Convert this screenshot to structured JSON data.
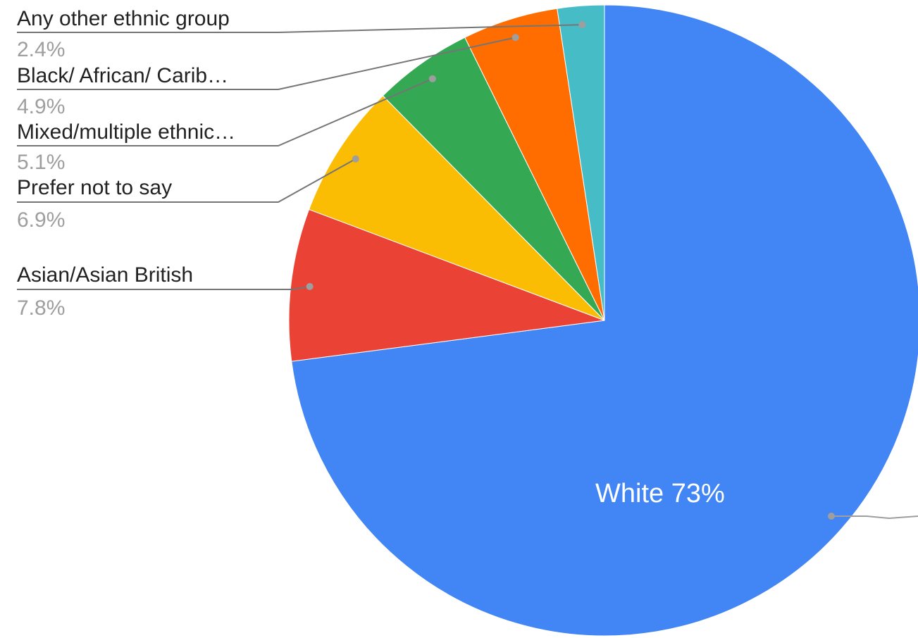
{
  "chart_data": {
    "type": "pie",
    "title": "",
    "legend": "none",
    "slices": [
      {
        "label": "White",
        "value": 73,
        "display": "White 73%",
        "color": "#4285f4"
      },
      {
        "label": "Asian/Asian British",
        "value": 7.8,
        "display": "7.8%",
        "color": "#ea4335"
      },
      {
        "label": "Prefer not to say",
        "value": 6.9,
        "display": "6.9%",
        "color": "#fbbc04"
      },
      {
        "label": "Mixed/multiple ethnic…",
        "value": 5.1,
        "display": "5.1%",
        "color": "#34a853"
      },
      {
        "label": "Black/ African/ Carib…",
        "value": 4.9,
        "display": "4.9%",
        "color": "#ff6d01"
      },
      {
        "label": "Any other ethnic group",
        "value": 2.4,
        "display": "2.4%",
        "color": "#46bdc6"
      }
    ]
  }
}
